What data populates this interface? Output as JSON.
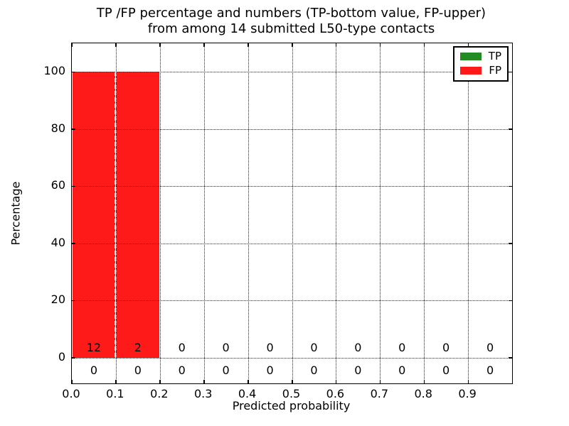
{
  "title": {
    "line1": "TP /FP percentage and numbers (TP-bottom value, FP-upper)",
    "line2": "from among 14 submitted L50-type contacts"
  },
  "axes": {
    "xlabel": "Predicted probability",
    "ylabel": "Percentage",
    "x_ticks": [
      {
        "pos": 0.0,
        "label": "0.0"
      },
      {
        "pos": 0.1,
        "label": "0.1"
      },
      {
        "pos": 0.2,
        "label": "0.2"
      },
      {
        "pos": 0.3,
        "label": "0.3"
      },
      {
        "pos": 0.4,
        "label": "0.4"
      },
      {
        "pos": 0.5,
        "label": "0.5"
      },
      {
        "pos": 0.6,
        "label": "0.6"
      },
      {
        "pos": 0.7,
        "label": "0.7"
      },
      {
        "pos": 0.8,
        "label": "0.8"
      },
      {
        "pos": 0.9,
        "label": "0.9"
      }
    ],
    "y_ticks": [
      {
        "pos": 0,
        "label": "0"
      },
      {
        "pos": 20,
        "label": "20"
      },
      {
        "pos": 40,
        "label": "40"
      },
      {
        "pos": 60,
        "label": "60"
      },
      {
        "pos": 80,
        "label": "80"
      },
      {
        "pos": 100,
        "label": "100"
      }
    ],
    "xlim": [
      0.0,
      1.0
    ],
    "ylim": [
      -9,
      110
    ],
    "grid": true
  },
  "legend": {
    "position": "upper right",
    "items": [
      {
        "label": "TP",
        "color": "#228b22"
      },
      {
        "label": "FP",
        "color": "#ff1a1a"
      }
    ]
  },
  "chart_data": {
    "type": "bar",
    "stacked": true,
    "title": "TP /FP percentage and numbers (TP-bottom value, FP-upper) from among 14 submitted L50-type contacts",
    "xlabel": "Predicted probability",
    "ylabel": "Percentage",
    "total_submitted_contacts": 14,
    "contact_type": "L50",
    "bin_edges": [
      0.0,
      0.1,
      0.2,
      0.3,
      0.4,
      0.5,
      0.6,
      0.7,
      0.8,
      0.9,
      1.0
    ],
    "bin_centers": [
      0.05,
      0.15,
      0.25,
      0.35,
      0.45,
      0.55,
      0.65,
      0.75,
      0.85,
      0.95
    ],
    "series": [
      {
        "name": "TP",
        "color": "#228b22",
        "count_label_row": "bottom",
        "percent": [
          0,
          0,
          0,
          0,
          0,
          0,
          0,
          0,
          0,
          0
        ],
        "counts": [
          0,
          0,
          0,
          0,
          0,
          0,
          0,
          0,
          0,
          0
        ]
      },
      {
        "name": "FP",
        "color": "#ff1a1a",
        "count_label_row": "upper",
        "percent": [
          100,
          100,
          0,
          0,
          0,
          0,
          0,
          0,
          0,
          0
        ],
        "counts": [
          12,
          2,
          0,
          0,
          0,
          0,
          0,
          0,
          0,
          0
        ]
      }
    ],
    "xlim": [
      0.0,
      1.0
    ],
    "ylim": [
      -9,
      110
    ],
    "grid": true,
    "legend_position": "upper right"
  },
  "colors": {
    "bar_fp": "#ff1a1a",
    "bar_tp": "#228b22",
    "grid": "#000000",
    "spine": "#000000",
    "background": "#ffffff"
  }
}
